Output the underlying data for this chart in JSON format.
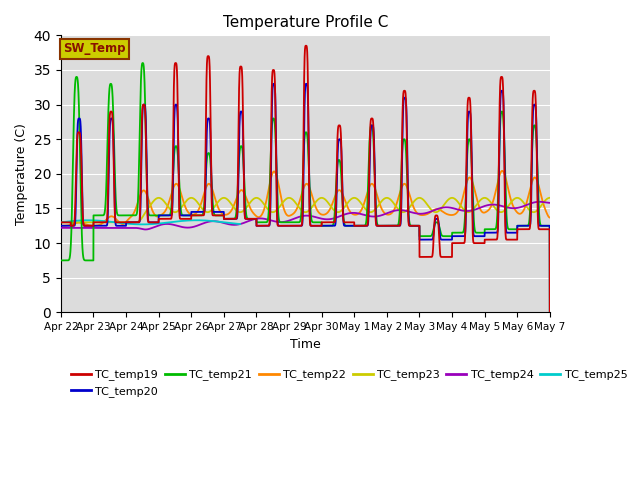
{
  "title": "Temperature Profile C",
  "xlabel": "Time",
  "ylabel": "Temperature (C)",
  "ylim": [
    0,
    40
  ],
  "yticks": [
    0,
    5,
    10,
    15,
    20,
    25,
    30,
    35,
    40
  ],
  "bg_color": "#dcdcdc",
  "series_colors": {
    "TC_temp19": "#cc0000",
    "TC_temp20": "#0000cc",
    "TC_temp21": "#00bb00",
    "TC_temp22": "#ff8800",
    "TC_temp23": "#cccc00",
    "TC_temp24": "#9900bb",
    "TC_temp25": "#00cccc"
  },
  "sw_temp_box_facecolor": "#cccc00",
  "sw_temp_box_edgecolor": "#883300",
  "sw_temp_text_color": "#881100",
  "figsize": [
    6.4,
    4.8
  ],
  "dpi": 100,
  "day_labels": [
    "Apr 22",
    "Apr 23",
    "Apr 24",
    "Apr 25",
    "Apr 26",
    "Apr 27",
    "Apr 28",
    "Apr 29",
    "Apr 30",
    "May 1",
    "May 2",
    "May 3",
    "May 4",
    "May 5",
    "May 6",
    "May 7"
  ]
}
